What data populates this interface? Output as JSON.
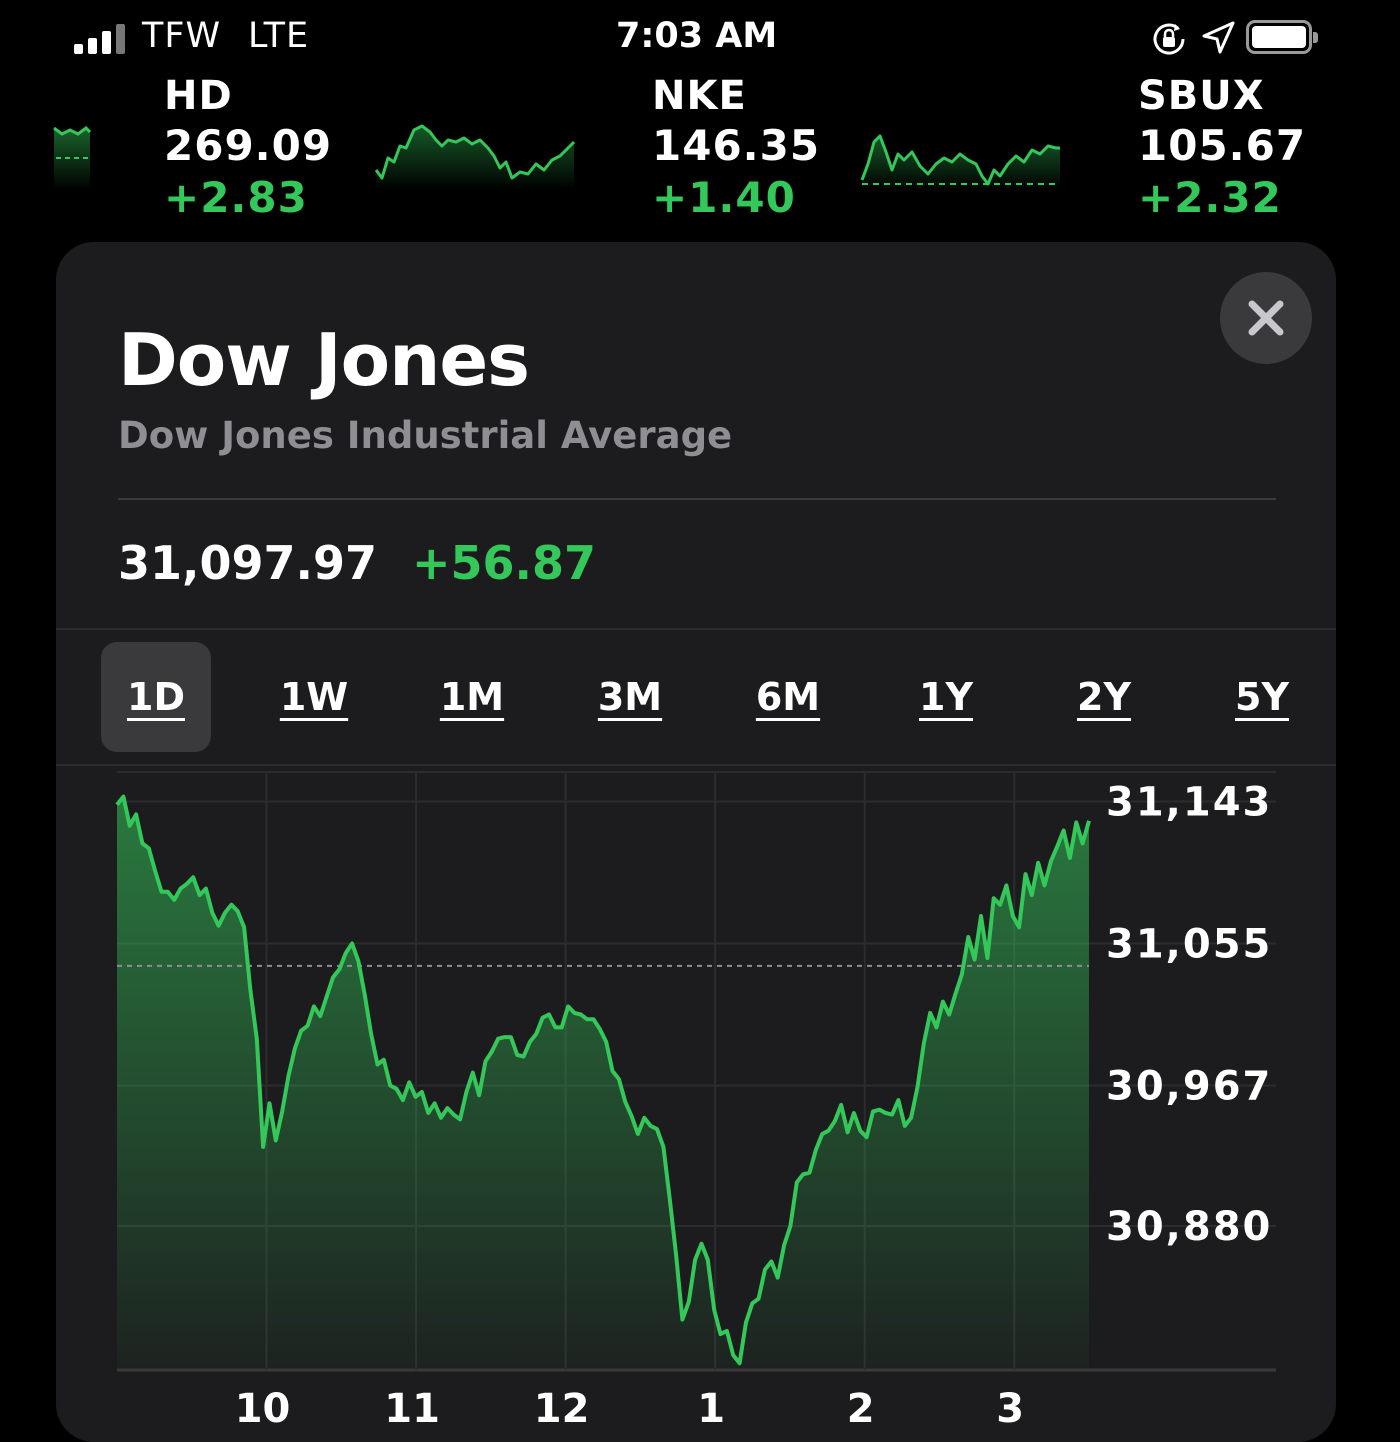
{
  "status_bar": {
    "carrier": "TFW",
    "network": "LTE",
    "time": "7:03 AM",
    "icons": [
      "signal-icon",
      "orientation-lock-icon",
      "location-icon",
      "battery-icon"
    ]
  },
  "ticker": [
    {
      "symbol": "HD",
      "price": "269.09",
      "change": "+2.83"
    },
    {
      "symbol": "NKE",
      "price": "146.35",
      "change": "+1.40"
    },
    {
      "symbol": "SBUX",
      "price": "105.67",
      "change": "+2.32"
    }
  ],
  "detail": {
    "title": "Dow Jones",
    "subtitle": "Dow Jones Industrial Average",
    "value": "31,097.97",
    "change": "+56.87",
    "close_icon": "close-icon"
  },
  "ranges": [
    "1D",
    "1W",
    "1M",
    "3M",
    "6M",
    "1Y",
    "2Y",
    "5Y"
  ],
  "selected_range": "1D",
  "colors": {
    "positive": "#34c759",
    "background": "#000000",
    "card": "#1c1c1e",
    "muted": "#8e8e93"
  },
  "chart_data": {
    "type": "area",
    "title": "",
    "xlabel": "",
    "ylabel": "",
    "x_ticks": [
      "10",
      "11",
      "12",
      "1",
      "2",
      "3"
    ],
    "y_ticks": [
      "31,143",
      "31,055",
      "30,967",
      "30,880"
    ],
    "ylim": [
      30792,
      31160
    ],
    "previous_close": 31041.1,
    "grid": true,
    "series": [
      {
        "values": [
          31141,
          31146,
          31128,
          31135,
          31117,
          31114,
          31100,
          31087,
          31087,
          31082,
          31089,
          31092,
          31096,
          31085,
          31089,
          31074,
          31066,
          31074,
          31079,
          31075,
          31065,
          31026,
          30996,
          30929,
          30956,
          30933,
          30951,
          30973,
          30990,
          31001,
          31004,
          31016,
          31010,
          31022,
          31034,
          31039,
          31049,
          31055,
          31044,
          31023,
          30999,
          30980,
          30983,
          30967,
          30965,
          30958,
          30969,
          30960,
          30963,
          30950,
          30956,
          30947,
          30953,
          30949,
          30946,
          30963,
          30975,
          30961,
          30982,
          30988,
          30996,
          30997,
          30997,
          30986,
          30985,
          30994,
          30999,
          31009,
          31011,
          31003,
          31003,
          31016,
          31012,
          31011,
          31008,
          31008,
          31002,
          30994,
          30976,
          30971,
          30957,
          30948,
          30937,
          30947,
          30942,
          30940,
          30929,
          30897,
          30862,
          30822,
          30833,
          30859,
          30869,
          30859,
          30828,
          30813,
          30815,
          30800,
          30795,
          30820,
          30832,
          30835,
          30853,
          30858,
          30848,
          30868,
          30880,
          30907,
          30912,
          30913,
          30927,
          30937,
          30939,
          30945,
          30955,
          30938,
          30950,
          30939,
          30935,
          30951,
          30952,
          30950,
          30949,
          30958,
          30942,
          30947,
          30966,
          30993,
          31012,
          31003,
          31019,
          31011,
          31024,
          31036,
          31059,
          31045,
          31072,
          31046,
          31083,
          31079,
          31091,
          31072,
          31065,
          31098,
          31085,
          31105,
          31091,
          31106,
          31115,
          31125,
          31108,
          31130,
          31117,
          31131
        ]
      }
    ]
  }
}
